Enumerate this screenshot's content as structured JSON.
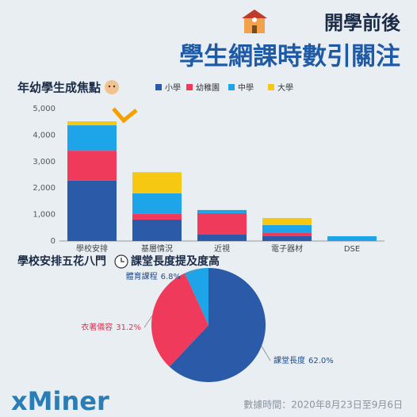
{
  "header": {
    "title": "開學前後",
    "subtitle": "學生網課時數引關注"
  },
  "chart_data": [
    {
      "type": "bar",
      "stacked": true,
      "title": "年幼學生成焦點",
      "categories": [
        "學校安排",
        "基層情況",
        "近視",
        "電子器材",
        "DSE"
      ],
      "series": [
        {
          "name": "小學",
          "color": "#2b5ba8",
          "values": [
            2280,
            810,
            240,
            180,
            0
          ]
        },
        {
          "name": "幼稚園",
          "color": "#f03a5c",
          "values": [
            1130,
            210,
            810,
            120,
            0
          ]
        },
        {
          "name": "中學",
          "color": "#1ea5e9",
          "values": [
            960,
            780,
            120,
            300,
            180
          ]
        },
        {
          "name": "大學",
          "color": "#f7c811",
          "values": [
            150,
            800,
            0,
            270,
            0
          ]
        }
      ],
      "ylim": [
        0,
        5000
      ],
      "yticks": [
        0,
        {
          "value": 1000,
          "label": "1,000"
        },
        {
          "value": 2000,
          "label": "2,000"
        },
        {
          "value": 3000,
          "label": "3,000"
        },
        {
          "value": 4000,
          "label": "4,000"
        },
        {
          "value": 5000,
          "label": "5,000"
        }
      ],
      "grid": false,
      "legend": "top"
    },
    {
      "type": "pie",
      "title_parts": [
        "學校安排五花八門",
        "課堂長度提及度高"
      ],
      "categories": [
        "課堂長度",
        "衣著儀容",
        "體育課程"
      ],
      "values": [
        62.0,
        31.2,
        6.8
      ],
      "value_labels": [
        "62.0%",
        "31.2%",
        "6.8%"
      ],
      "colors": [
        "#2b5ba8",
        "#f03a5c",
        "#1ea5e9"
      ]
    }
  ],
  "footer": {
    "logo": "xMiner",
    "date": "數據時間：2020年8月23日至9月6日"
  }
}
